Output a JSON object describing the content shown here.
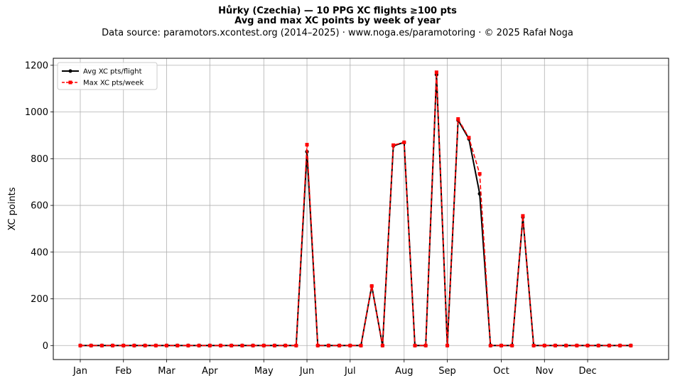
{
  "title_line1": "Hůrky (Czechia)  —  10 PPG XC flights ≥100 pts",
  "title_line2": "Avg and max XC points by week of year",
  "subtitle": "Data source: paramotors.xcontest.org (2014–2025)  ·  www.noga.es/paramotoring  ·  © 2025 Rafał Noga",
  "chart_data": {
    "type": "line",
    "ylabel": "XC points",
    "xlabel": "",
    "xlim": [
      -2.5,
      54.5
    ],
    "ylim": [
      -60,
      1230
    ],
    "yticks": [
      0,
      200,
      400,
      600,
      800,
      1000,
      1200
    ],
    "grid": true,
    "legend_position": "top-left",
    "month_ticks": [
      {
        "label": "Jan",
        "week": 0
      },
      {
        "label": "Feb",
        "week": 4
      },
      {
        "label": "Mar",
        "week": 8
      },
      {
        "label": "Apr",
        "week": 12
      },
      {
        "label": "May",
        "week": 17
      },
      {
        "label": "Jun",
        "week": 21
      },
      {
        "label": "Jul",
        "week": 25
      },
      {
        "label": "Aug",
        "week": 30
      },
      {
        "label": "Sep",
        "week": 34
      },
      {
        "label": "Oct",
        "week": 39
      },
      {
        "label": "Nov",
        "week": 43
      },
      {
        "label": "Dec",
        "week": 47
      }
    ],
    "x": [
      0,
      1,
      2,
      3,
      4,
      5,
      6,
      7,
      8,
      9,
      10,
      11,
      12,
      13,
      14,
      15,
      16,
      17,
      18,
      19,
      20,
      21,
      22,
      23,
      24,
      25,
      26,
      27,
      28,
      29,
      30,
      31,
      32,
      33,
      34,
      35,
      36,
      37,
      38,
      39,
      40,
      41,
      42,
      43,
      44,
      45,
      46,
      47,
      48,
      49,
      50,
      51
    ],
    "series": [
      {
        "name": "Avg XC pts/flight",
        "color": "#000000",
        "style": "solid",
        "marker": "circle",
        "values": [
          0,
          0,
          0,
          0,
          0,
          0,
          0,
          0,
          0,
          0,
          0,
          0,
          0,
          0,
          0,
          0,
          0,
          0,
          0,
          0,
          0,
          830,
          0,
          0,
          0,
          0,
          0,
          255,
          0,
          855,
          870,
          0,
          0,
          1160,
          0,
          965,
          885,
          650,
          0,
          0,
          0,
          550,
          0,
          0,
          0,
          0,
          0,
          0,
          0,
          0,
          0,
          0
        ]
      },
      {
        "name": "Max XC pts/week",
        "color": "#ff0000",
        "style": "dashed",
        "marker": "square",
        "values": [
          0,
          0,
          0,
          0,
          0,
          0,
          0,
          0,
          0,
          0,
          0,
          0,
          0,
          0,
          0,
          0,
          0,
          0,
          0,
          0,
          0,
          860,
          0,
          0,
          0,
          0,
          0,
          255,
          0,
          858,
          870,
          0,
          0,
          1170,
          0,
          970,
          890,
          735,
          0,
          0,
          0,
          555,
          0,
          0,
          0,
          0,
          0,
          0,
          0,
          0,
          0,
          0
        ]
      }
    ]
  }
}
